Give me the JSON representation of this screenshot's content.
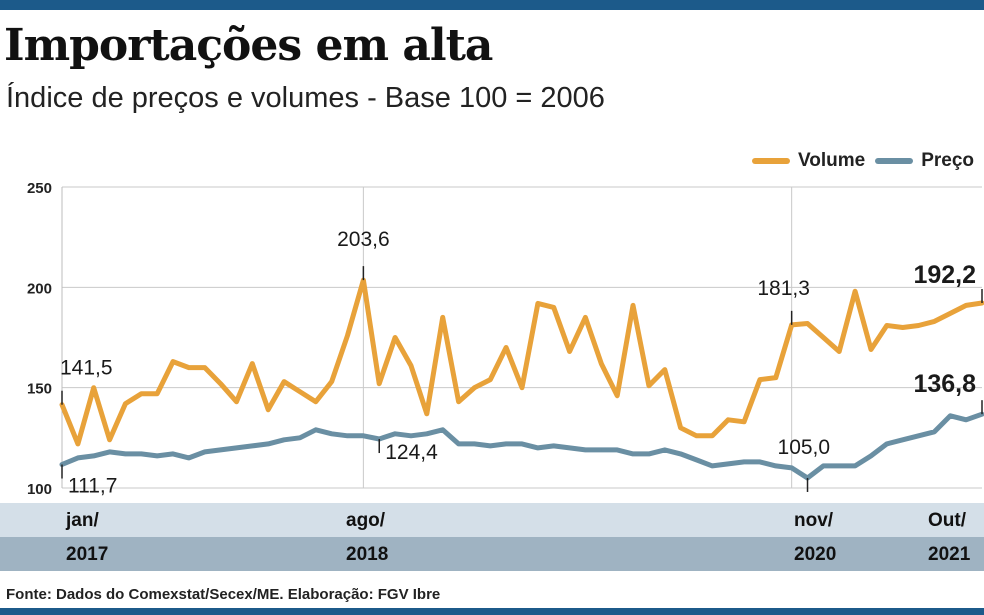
{
  "header": {
    "title": "Importações em alta",
    "subtitle": "Índice de preços e volumes - Base 100 = 2006"
  },
  "legend": [
    {
      "label": "Volume",
      "color": "#e8a23a"
    },
    {
      "label": "Preço",
      "color": "#6a8fa3"
    }
  ],
  "timeline": {
    "months": [
      {
        "month": "jan/",
        "year": "2017"
      },
      {
        "month": "ago/",
        "year": "2018"
      },
      {
        "month": "nov/",
        "year": "2020"
      },
      {
        "month": "Out/",
        "year": "2021"
      }
    ]
  },
  "footer": {
    "source": "Fonte: Dados do Comexstat/Secex/ME. Elaboração: FGV Ibre"
  },
  "chart_data": {
    "type": "line",
    "x_start": "jan/2017",
    "x_end": "out/2021",
    "ylim": [
      100,
      250
    ],
    "yticks": [
      "250",
      "200",
      "150",
      "100"
    ],
    "grid": true,
    "legend_position": "top-right",
    "series": [
      {
        "name": "Volume",
        "color": "#e8a23a",
        "values": [
          141.5,
          122,
          150,
          124,
          142,
          147,
          147,
          163,
          160,
          160,
          152,
          143,
          162,
          139,
          153,
          148,
          143,
          153,
          176,
          203.6,
          152,
          175,
          161,
          137,
          185,
          143,
          150,
          154,
          170,
          150,
          192,
          190,
          168,
          185,
          162,
          146,
          191,
          151,
          159,
          130,
          126,
          126,
          134,
          133,
          154,
          155,
          181.3,
          182,
          175,
          168,
          198,
          169,
          181,
          180,
          181,
          183,
          187,
          191,
          192.2
        ]
      },
      {
        "name": "Preço",
        "color": "#6a8fa3",
        "values": [
          111.7,
          115,
          116,
          118,
          117,
          117,
          116,
          117,
          115,
          118,
          119,
          120,
          121,
          122,
          124,
          125,
          129,
          127,
          126,
          126,
          124.4,
          127,
          126,
          127,
          129,
          122,
          122,
          121,
          122,
          122,
          120,
          121,
          120,
          119,
          119,
          119,
          117,
          117,
          119,
          117,
          114,
          111,
          112,
          113,
          113,
          111,
          110,
          105.0,
          111,
          111,
          111,
          116,
          122,
          124,
          126,
          128,
          136,
          134,
          136.8
        ]
      }
    ],
    "annotations": [
      {
        "text": "141,5",
        "series": "Volume",
        "index": 0,
        "bold": false
      },
      {
        "text": "111,7",
        "series": "Preço",
        "index": 0,
        "bold": false
      },
      {
        "text": "203,6",
        "series": "Volume",
        "index": 19,
        "bold": false
      },
      {
        "text": "124,4",
        "series": "Preço",
        "index": 20,
        "bold": false
      },
      {
        "text": "181,3",
        "series": "Volume",
        "index": 46,
        "bold": false
      },
      {
        "text": "105,0",
        "series": "Preço",
        "index": 47,
        "bold": false
      },
      {
        "text": "192,2",
        "series": "Volume",
        "index": 58,
        "bold": true
      },
      {
        "text": "136,8",
        "series": "Preço",
        "index": 58,
        "bold": true
      }
    ]
  }
}
